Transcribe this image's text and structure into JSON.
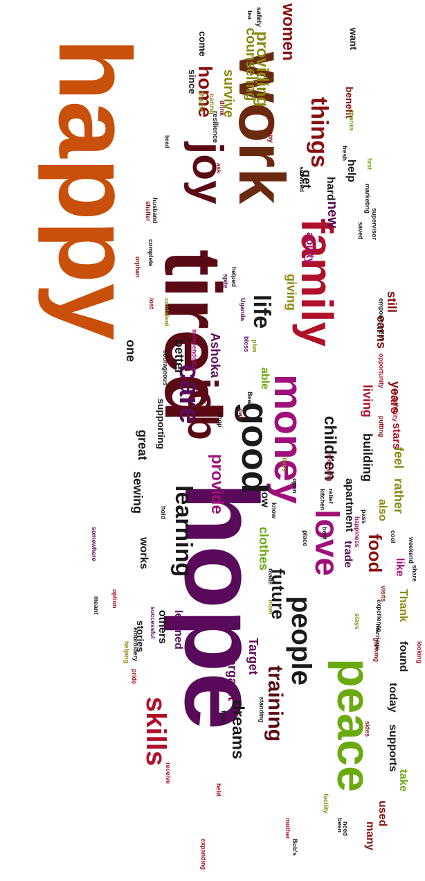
{
  "palette": {
    "orange": "#c8500a",
    "purple": "#5a0a5a",
    "maroon": "#5a0a14",
    "green": "#6aaa10",
    "crimson": "#b0102a",
    "magenta": "#a0107a",
    "olive": "#8a8a10",
    "black": "#1a1a1a",
    "brown": "#6a2a10",
    "darkred": "#8a1010"
  },
  "words": [
    {
      "text": "happy",
      "color": "orange"
    },
    {
      "text": "hope",
      "color": "purple"
    },
    {
      "text": "tired",
      "color": "maroon"
    },
    {
      "text": "work",
      "color": "brown"
    },
    {
      "text": "joy",
      "color": "maroon"
    },
    {
      "text": "family",
      "color": "crimson"
    },
    {
      "text": "peace",
      "color": "green"
    },
    {
      "text": "love",
      "color": "magenta"
    },
    {
      "text": "money",
      "color": "magenta"
    },
    {
      "text": "job",
      "color": "maroon"
    },
    {
      "text": "good",
      "color": "black"
    },
    {
      "text": "people",
      "color": "black"
    },
    {
      "text": "future",
      "color": "black"
    },
    {
      "text": "care",
      "color": "purple"
    },
    {
      "text": "life",
      "color": "black"
    },
    {
      "text": "skills",
      "color": "crimson"
    },
    {
      "text": "learning",
      "color": "black"
    },
    {
      "text": "training",
      "color": "maroon"
    },
    {
      "text": "dreams",
      "color": "black"
    },
    {
      "text": "provide",
      "color": "magenta"
    },
    {
      "text": "children",
      "color": "black"
    },
    {
      "text": "things",
      "color": "darkred"
    },
    {
      "text": "women",
      "color": "darkred"
    },
    {
      "text": "food",
      "color": "darkred"
    },
    {
      "text": "home",
      "color": "darkred"
    },
    {
      "text": "survive",
      "color": "olive"
    },
    {
      "text": "providing",
      "color": "olive"
    },
    {
      "text": "counseling",
      "color": "olive"
    },
    {
      "text": "new",
      "color": "purple"
    },
    {
      "text": "hard",
      "color": "black"
    },
    {
      "text": "help",
      "color": "black"
    },
    {
      "text": "get",
      "color": "black"
    },
    {
      "text": "giving",
      "color": "olive"
    },
    {
      "text": "ability",
      "color": "magenta"
    },
    {
      "text": "able",
      "color": "green"
    },
    {
      "text": "Ashoka",
      "color": "purple"
    },
    {
      "text": "still",
      "color": "darkred"
    },
    {
      "text": "earns",
      "color": "darkred"
    },
    {
      "text": "better",
      "color": "black"
    },
    {
      "text": "one",
      "color": "black"
    },
    {
      "text": "great",
      "color": "black"
    },
    {
      "text": "sewing",
      "color": "black"
    },
    {
      "text": "supporting",
      "color": "black"
    },
    {
      "text": "years",
      "color": "darkred"
    },
    {
      "text": "stars",
      "color": "crimson"
    },
    {
      "text": "living",
      "color": "crimson"
    },
    {
      "text": "building",
      "color": "black"
    },
    {
      "text": "rather",
      "color": "olive"
    },
    {
      "text": "feel",
      "color": "olive"
    },
    {
      "text": "trade",
      "color": "purple"
    },
    {
      "text": "apartment",
      "color": "black"
    },
    {
      "text": "clothes",
      "color": "green"
    },
    {
      "text": "also",
      "color": "olive"
    },
    {
      "text": "now",
      "color": "black"
    },
    {
      "text": "Thank",
      "color": "olive"
    },
    {
      "text": "like",
      "color": "magenta"
    },
    {
      "text": "Target",
      "color": "purple"
    },
    {
      "text": "Margaret",
      "color": "purple"
    },
    {
      "text": "learned",
      "color": "purple"
    },
    {
      "text": "others",
      "color": "black"
    },
    {
      "text": "works",
      "color": "black"
    },
    {
      "text": "stories",
      "color": "black"
    },
    {
      "text": "found",
      "color": "black"
    },
    {
      "text": "today",
      "color": "black"
    },
    {
      "text": "supports",
      "color": "black"
    },
    {
      "text": "take",
      "color": "green"
    },
    {
      "text": "used",
      "color": "darkred"
    },
    {
      "text": "many",
      "color": "darkred"
    },
    {
      "text": "want",
      "color": "black"
    },
    {
      "text": "benefit",
      "color": "darkred"
    },
    {
      "text": "since",
      "color": "black"
    },
    {
      "text": "come",
      "color": "black"
    },
    {
      "text": "safety",
      "color": "black"
    },
    {
      "text": "tea",
      "color": "black"
    },
    {
      "text": "shame",
      "color": "olive"
    },
    {
      "text": "caring",
      "color": "olive"
    },
    {
      "text": "drink",
      "color": "darkred"
    },
    {
      "text": "thanks",
      "color": "green"
    },
    {
      "text": "therapy",
      "color": "darkred"
    },
    {
      "text": "resilience",
      "color": "black"
    },
    {
      "text": "fresh",
      "color": "black"
    },
    {
      "text": "first",
      "color": "green"
    },
    {
      "text": "ask",
      "color": "darkred"
    },
    {
      "text": "survived",
      "color": "black"
    },
    {
      "text": "husband",
      "color": "black"
    },
    {
      "text": "marketing",
      "color": "black"
    },
    {
      "text": "bead",
      "color": "black"
    },
    {
      "text": "saved",
      "color": "black"
    },
    {
      "text": "supervisor",
      "color": "black"
    },
    {
      "text": "shelter",
      "color": "darkred"
    },
    {
      "text": "complete",
      "color": "black"
    },
    {
      "text": "orphan",
      "color": "darkred"
    },
    {
      "text": "spite",
      "color": "purple"
    },
    {
      "text": "helped",
      "color": "black"
    },
    {
      "text": "Uganda",
      "color": "purple"
    },
    {
      "text": "lost",
      "color": "darkred"
    },
    {
      "text": "confident",
      "color": "olive"
    },
    {
      "text": "independence",
      "color": "magenta"
    },
    {
      "text": "plus",
      "color": "olive"
    },
    {
      "text": "bless",
      "color": "purple"
    },
    {
      "text": "empowerment",
      "color": "black"
    },
    {
      "text": "courageous",
      "color": "black"
    },
    {
      "text": "shop",
      "color": "black"
    },
    {
      "text": "Bean",
      "color": "black"
    },
    {
      "text": "pay",
      "color": "darkred"
    },
    {
      "text": "community",
      "color": "crimson"
    },
    {
      "text": "putting",
      "color": "darkred"
    },
    {
      "text": "receiving",
      "color": "crimson"
    },
    {
      "text": "opportunity",
      "color": "crimson"
    },
    {
      "text": "lives",
      "color": "olive"
    },
    {
      "text": "weekend",
      "color": "black"
    },
    {
      "text": "know",
      "color": "black"
    },
    {
      "text": "share",
      "color": "black"
    },
    {
      "text": "cool",
      "color": "black"
    },
    {
      "text": "pass",
      "color": "black"
    },
    {
      "text": "best",
      "color": "black"
    },
    {
      "text": "kitchen",
      "color": "black"
    },
    {
      "text": "relief",
      "color": "black"
    },
    {
      "text": "open",
      "color": "black"
    },
    {
      "text": "somewhere",
      "color": "purple"
    },
    {
      "text": "place",
      "color": "black"
    },
    {
      "text": "happiness",
      "color": "magenta"
    },
    {
      "text": "hold",
      "color": "black"
    },
    {
      "text": "made",
      "color": "black"
    },
    {
      "text": "mom",
      "color": "olive"
    },
    {
      "text": "meant",
      "color": "black"
    },
    {
      "text": "option",
      "color": "crimson"
    },
    {
      "text": "helping",
      "color": "olive"
    },
    {
      "text": "embroidery",
      "color": "black"
    },
    {
      "text": "successful",
      "color": "purple"
    },
    {
      "text": "pride",
      "color": "crimson"
    },
    {
      "text": "visits",
      "color": "darkred"
    },
    {
      "text": "experience",
      "color": "black"
    },
    {
      "text": "marriage",
      "color": "black"
    },
    {
      "text": "looking",
      "color": "crimson"
    },
    {
      "text": "stays",
      "color": "olive"
    },
    {
      "text": "sides",
      "color": "darkred"
    },
    {
      "text": "growing",
      "color": "darkred"
    },
    {
      "text": "standing",
      "color": "black"
    },
    {
      "text": "feels",
      "color": "black"
    },
    {
      "text": "receive",
      "color": "crimson"
    },
    {
      "text": "held",
      "color": "crimson"
    },
    {
      "text": "facility",
      "color": "olive"
    },
    {
      "text": "expanding",
      "color": "crimson"
    },
    {
      "text": "Bob's",
      "color": "black"
    },
    {
      "text": "mother",
      "color": "crimson"
    },
    {
      "text": "been",
      "color": "black"
    },
    {
      "text": "need",
      "color": "black"
    }
  ]
}
